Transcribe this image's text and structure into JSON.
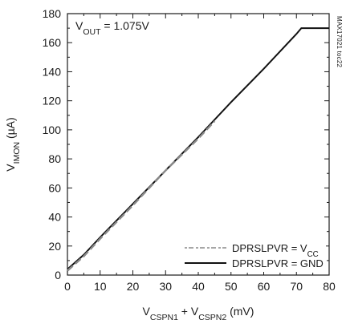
{
  "chart_data": {
    "type": "line",
    "xlabel": {
      "parts": [
        {
          "text": "V",
          "sub": false
        },
        {
          "text": "CSPN1",
          "sub": true
        },
        {
          "text": " + V",
          "sub": false
        },
        {
          "text": "CSPN2",
          "sub": true
        },
        {
          "text": " (mV)",
          "sub": false
        }
      ]
    },
    "ylabel": {
      "parts": [
        {
          "text": "V",
          "sub": false
        },
        {
          "text": "IMON",
          "sub": true
        },
        {
          "text": " (µA)",
          "sub": false
        }
      ]
    },
    "xlim": [
      0,
      80
    ],
    "ylim": [
      0,
      180
    ],
    "x_ticks": [
      0,
      10,
      20,
      30,
      40,
      50,
      60,
      70,
      80
    ],
    "y_ticks": [
      0,
      20,
      40,
      60,
      80,
      100,
      120,
      140,
      160,
      180
    ],
    "x_tick_labels": [
      "0",
      "10",
      "20",
      "30",
      "40",
      "50",
      "60",
      "70",
      "80"
    ],
    "y_tick_labels": [
      "0",
      "20",
      "40",
      "60",
      "80",
      "100",
      "120",
      "140",
      "160",
      "180"
    ],
    "grid": false,
    "annotation": {
      "parts": [
        {
          "text": "V",
          "sub": false
        },
        {
          "text": "OUT",
          "sub": true
        },
        {
          "text": " = 1.075V",
          "sub": false
        }
      ]
    },
    "side_note": "MAX17021 toc22",
    "legend": {
      "position": "bottom-right",
      "entries": [
        {
          "series_index": 0,
          "parts": [
            {
              "text": "DPRSLPVR = V",
              "sub": false
            },
            {
              "text": "CC",
              "sub": true
            }
          ]
        },
        {
          "series_index": 1,
          "parts": [
            {
              "text": "DPRSLPVR = GND",
              "sub": false
            }
          ]
        }
      ]
    },
    "series": [
      {
        "name": "DPRSLPVR = VCC",
        "style": "dashed",
        "color": "#8a8a8a",
        "x": [
          0,
          1,
          2,
          5,
          10,
          20,
          30,
          40,
          45
        ],
        "y": [
          3,
          5,
          7,
          13,
          25,
          48,
          72,
          94,
          106
        ]
      },
      {
        "name": "DPRSLPVR = GND",
        "style": "solid",
        "color": "#111111",
        "x": [
          0,
          1,
          2,
          5,
          10,
          20,
          30,
          40,
          50,
          60,
          70,
          71.5,
          80
        ],
        "y": [
          4,
          6,
          8,
          14,
          26,
          49,
          72,
          95,
          119,
          142,
          166,
          170,
          170
        ]
      }
    ]
  }
}
